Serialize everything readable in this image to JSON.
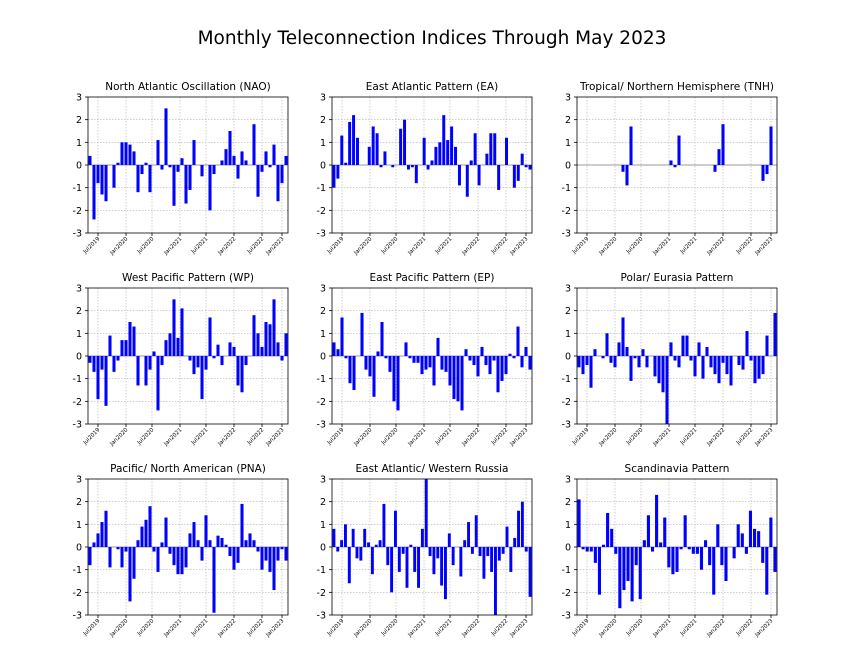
{
  "title": "Monthly Teleconnection Indices Through May 2023",
  "chart_data": [
    {
      "type": "bar",
      "title": "North Atlantic Oscillation (NAO)",
      "ylim": [
        -3,
        3
      ],
      "yticks": [
        3,
        2,
        1,
        0,
        -1,
        -2,
        -3
      ],
      "xticks": [
        "Jul2019",
        "Jan2020",
        "Jul2020",
        "Jan2021",
        "Jul2021",
        "Jan2022",
        "Jul2022",
        "Jan2023"
      ],
      "grid": true,
      "color": "#0000ff",
      "values": [
        0.4,
        -2.4,
        -0.8,
        -1.3,
        -1.6,
        0.0,
        -1.0,
        0.1,
        1.0,
        1.0,
        0.9,
        0.6,
        -1.2,
        -0.4,
        0.1,
        -1.2,
        0.0,
        1.1,
        -0.2,
        2.5,
        -0.1,
        -1.8,
        -0.3,
        0.3,
        -1.7,
        -1.1,
        1.1,
        0.0,
        -0.5,
        0.0,
        -2.0,
        -0.4,
        0.0,
        0.2,
        0.7,
        1.5,
        0.4,
        -0.6,
        0.6,
        0.2,
        0.0,
        1.8,
        -1.4,
        -0.3,
        0.6,
        -0.1,
        0.9,
        -1.6,
        -0.8,
        0.4
      ]
    },
    {
      "type": "bar",
      "title": "East Atlantic Pattern (EA)",
      "ylim": [
        -3,
        3
      ],
      "yticks": [
        3,
        2,
        1,
        0,
        -1,
        -2,
        -3
      ],
      "xticks": [
        "Jul2019",
        "Jan2020",
        "Jul2020",
        "Jan2021",
        "Jul2021",
        "Jan2022",
        "Jul2022",
        "Jan2023"
      ],
      "grid": true,
      "color": "#0000ff",
      "values": [
        -1.0,
        -0.6,
        1.3,
        0.1,
        1.9,
        2.2,
        1.2,
        0.0,
        0.0,
        0.8,
        1.7,
        1.4,
        -0.1,
        0.6,
        0.0,
        -0.1,
        0.0,
        1.6,
        2.0,
        -0.2,
        -0.1,
        -0.8,
        0.0,
        1.2,
        -0.2,
        0.2,
        0.8,
        1.0,
        2.2,
        1.1,
        1.7,
        0.8,
        -0.9,
        0.0,
        -1.4,
        0.2,
        1.4,
        -0.9,
        0.0,
        0.5,
        1.4,
        1.4,
        -1.1,
        0.0,
        1.2,
        0.0,
        -1.0,
        -0.7,
        0.5,
        -0.1,
        -0.2
      ]
    },
    {
      "type": "bar",
      "title": "Tropical/ Northern Hemisphere (TNH)",
      "ylim": [
        -3,
        3
      ],
      "yticks": [
        3,
        2,
        1,
        0,
        -1,
        -2,
        -3
      ],
      "xticks": [
        "Jul2019",
        "Jan2020",
        "Jul2020",
        "Jan2021",
        "Jul2021",
        "Jan2022",
        "Jul2022",
        "Jan2023"
      ],
      "grid": true,
      "color": "#0000ff",
      "values": [
        0,
        0,
        0,
        0,
        0,
        0,
        0,
        0,
        0,
        0,
        0,
        -0.3,
        -0.9,
        1.7,
        0,
        0,
        0,
        0,
        0,
        0,
        0,
        0,
        0,
        0.2,
        -0.1,
        1.3,
        0,
        0,
        0,
        0,
        0,
        0,
        0,
        0,
        -0.3,
        0.7,
        1.8,
        0,
        0,
        0,
        0,
        0,
        0,
        0,
        0,
        0,
        -0.7,
        -0.4,
        1.7,
        0
      ]
    },
    {
      "type": "bar",
      "title": "West Pacific Pattern (WP)",
      "ylim": [
        -3,
        3
      ],
      "yticks": [
        3,
        2,
        1,
        0,
        -1,
        -2,
        -3
      ],
      "xticks": [
        "Jul2019",
        "Jan2020",
        "Jul2020",
        "Jan2021",
        "Jul2021",
        "Jan2022",
        "Jul2022",
        "Jan2023"
      ],
      "grid": true,
      "color": "#0000ff",
      "values": [
        -0.3,
        -0.7,
        -1.9,
        -0.6,
        -2.2,
        0.9,
        -0.7,
        -0.2,
        0.7,
        0.7,
        1.5,
        1.3,
        -1.3,
        0.0,
        -1.3,
        -0.6,
        0.2,
        -2.4,
        -0.4,
        0.7,
        1.0,
        2.5,
        0.8,
        2.1,
        0.0,
        -0.2,
        -0.8,
        -0.5,
        -1.9,
        -0.6,
        1.7,
        -0.1,
        0.5,
        -0.4,
        0.0,
        0.6,
        0.4,
        -1.3,
        -1.6,
        -0.4,
        0.0,
        1.8,
        1.0,
        0.4,
        1.5,
        1.4,
        2.5,
        0.6,
        -0.2,
        1.0
      ]
    },
    {
      "type": "bar",
      "title": "East Pacific Pattern (EP)",
      "ylim": [
        -3,
        3
      ],
      "yticks": [
        3,
        2,
        1,
        0,
        -1,
        -2,
        -3
      ],
      "xticks": [
        "Jul2019",
        "Jan2020",
        "Jul2020",
        "Jan2021",
        "Jul2021",
        "Jan2022",
        "Jul2022",
        "Jan2023"
      ],
      "grid": true,
      "color": "#0000ff",
      "values": [
        0.6,
        0.3,
        1.7,
        -0.1,
        -1.2,
        -1.5,
        0.0,
        1.9,
        -0.6,
        -0.9,
        -1.8,
        0.2,
        1.5,
        -0.1,
        -0.7,
        -2.0,
        -2.4,
        0.0,
        0.6,
        -0.1,
        -0.3,
        -0.3,
        -0.8,
        -0.6,
        -0.5,
        -1.3,
        0.8,
        -0.6,
        -0.7,
        -1.3,
        -1.9,
        -2.0,
        -2.4,
        0.3,
        -0.2,
        -0.4,
        -0.9,
        0.4,
        -0.4,
        -0.8,
        -0.2,
        -1.6,
        -1.1,
        -0.8,
        0.1,
        -0.1,
        1.3,
        -0.5,
        0.4,
        -0.6
      ]
    },
    {
      "type": "bar",
      "title": "Polar/ Eurasia Pattern",
      "ylim": [
        -3,
        3
      ],
      "yticks": [
        3,
        2,
        1,
        0,
        -1,
        -2,
        -3
      ],
      "xticks": [
        "Jul2019",
        "Jan2020",
        "Jul2020",
        "Jan2021",
        "Jul2021",
        "Jan2022",
        "Jul2022",
        "Jan2023"
      ],
      "grid": true,
      "color": "#0000ff",
      "values": [
        -0.5,
        -0.8,
        -0.4,
        -1.4,
        0.3,
        0.0,
        -0.1,
        1.0,
        -0.3,
        -0.5,
        0.6,
        1.7,
        0.4,
        -1.1,
        -0.1,
        -0.5,
        0.3,
        -0.5,
        0.0,
        -0.9,
        -1.2,
        -1.6,
        -3.0,
        0.6,
        -0.2,
        -0.5,
        0.9,
        0.9,
        -0.2,
        -0.9,
        0.6,
        -1.0,
        0.4,
        -0.5,
        -0.8,
        -1.2,
        -0.3,
        -0.8,
        -1.3,
        0.0,
        -0.4,
        -0.6,
        1.1,
        -0.2,
        -1.2,
        -1.0,
        -0.8,
        0.9,
        0.0,
        1.9
      ]
    },
    {
      "type": "bar",
      "title": "Pacific/ North American (PNA)",
      "ylim": [
        -3,
        3
      ],
      "yticks": [
        3,
        2,
        1,
        0,
        -1,
        -2,
        -3
      ],
      "xticks": [
        "Jul2019",
        "Jan2020",
        "Jul2020",
        "Jan2021",
        "Jul2021",
        "Jan2022",
        "Jul2022",
        "Jan2023"
      ],
      "grid": true,
      "color": "#0000ff",
      "values": [
        -0.8,
        0.2,
        0.6,
        1.1,
        1.6,
        -0.9,
        0.0,
        -0.1,
        -0.9,
        -0.2,
        -2.4,
        -1.4,
        0.3,
        0.9,
        1.2,
        1.8,
        -0.2,
        -1.1,
        0.2,
        1.3,
        -0.3,
        -0.8,
        -1.2,
        -1.2,
        -0.9,
        0.6,
        1.1,
        0.3,
        -0.6,
        1.4,
        0.3,
        -2.9,
        0.5,
        0.4,
        0.1,
        -0.4,
        -1.0,
        -0.7,
        1.9,
        0.3,
        0.6,
        0.3,
        -0.2,
        -1.0,
        -0.6,
        -1.1,
        -1.9,
        -0.6,
        -0.1,
        -0.6
      ]
    },
    {
      "type": "bar",
      "title": "East Atlantic/ Western Russia",
      "ylim": [
        -3,
        3
      ],
      "yticks": [
        3,
        2,
        1,
        0,
        -1,
        -2,
        -3
      ],
      "xticks": [
        "Jul2019",
        "Jan2020",
        "Jul2020",
        "Jan2021",
        "Jul2021",
        "Jan2022",
        "Jul2022",
        "Jan2023"
      ],
      "grid": true,
      "color": "#0000ff",
      "values": [
        0.8,
        -0.2,
        0.3,
        1.0,
        -1.6,
        0.8,
        -0.5,
        -0.6,
        0.8,
        0.2,
        -1.2,
        0.1,
        0.3,
        1.9,
        -0.8,
        -2.0,
        1.6,
        -1.1,
        -0.3,
        -1.8,
        0.1,
        -1.1,
        -1.8,
        0.8,
        3.0,
        -0.4,
        -1.2,
        -0.5,
        -1.7,
        -2.3,
        0.6,
        -0.8,
        0.0,
        -1.3,
        0.3,
        1.1,
        -0.3,
        1.4,
        -0.4,
        -1.4,
        -0.4,
        -1.1,
        -3.0,
        -0.6,
        -0.3,
        0.9,
        -1.1,
        0.4,
        1.6,
        2.0,
        -0.2,
        -2.2
      ]
    },
    {
      "type": "bar",
      "title": "Scandinavia Pattern",
      "ylim": [
        -3,
        3
      ],
      "yticks": [
        3,
        2,
        1,
        0,
        -1,
        -2,
        -3
      ],
      "xticks": [
        "Jul2019",
        "Jan2020",
        "Jul2020",
        "Jan2021",
        "Jul2021",
        "Jan2022",
        "Jul2022",
        "Jan2023"
      ],
      "grid": true,
      "color": "#0000ff",
      "values": [
        2.1,
        -0.1,
        -0.2,
        -0.2,
        -0.7,
        -2.1,
        0.1,
        1.5,
        0.8,
        -0.3,
        -2.7,
        -1.9,
        -1.5,
        -2.4,
        -0.8,
        -2.3,
        0.3,
        1.4,
        -0.2,
        2.3,
        0.2,
        1.3,
        -0.9,
        -1.2,
        -1.1,
        -0.1,
        1.4,
        -0.1,
        -0.3,
        -0.3,
        -1.0,
        0.3,
        -0.8,
        -2.1,
        1.0,
        -0.8,
        -1.5,
        0.0,
        -0.5,
        1.0,
        0.6,
        -0.3,
        1.6,
        0.8,
        0.7,
        -0.7,
        -2.1,
        1.3,
        -1.1
      ]
    }
  ]
}
